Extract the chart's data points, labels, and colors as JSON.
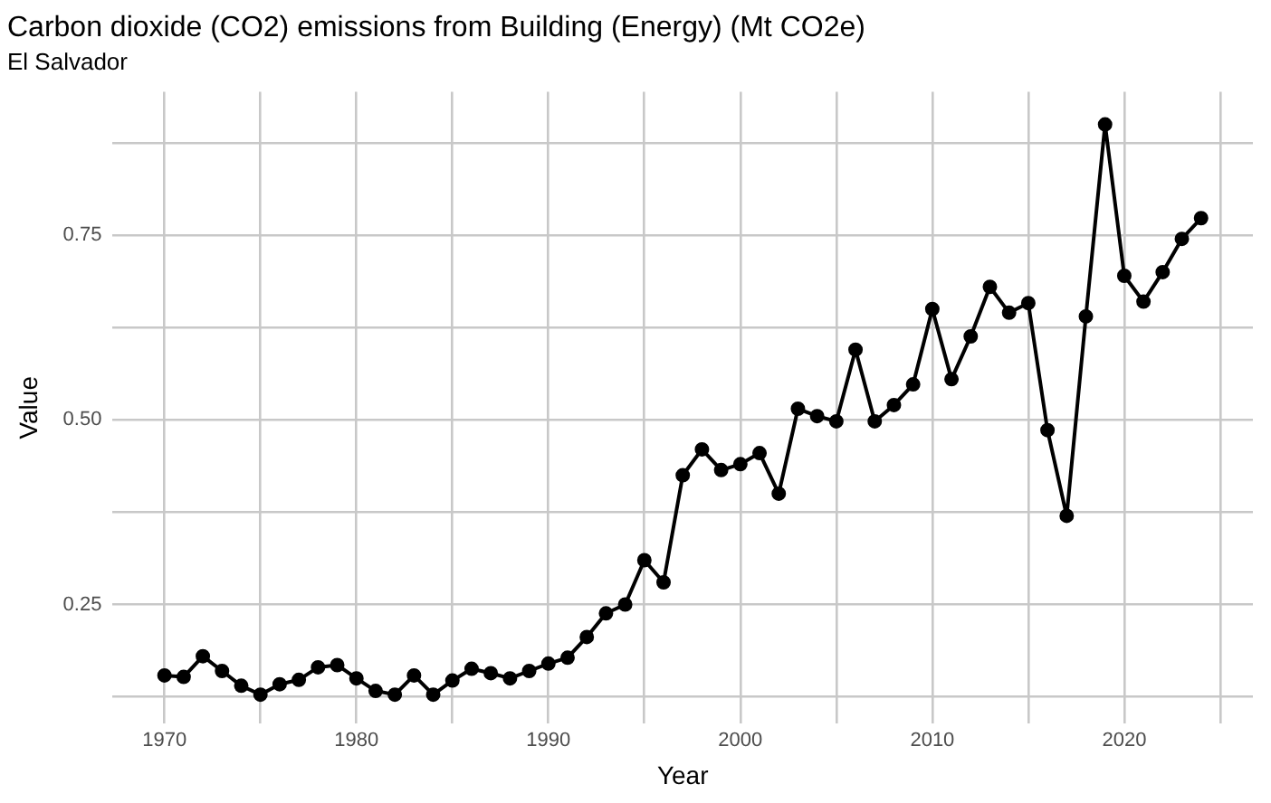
{
  "chart_data": {
    "type": "line",
    "title": "Carbon dioxide (CO2) emissions from Building (Energy) (Mt CO2e)",
    "subtitle": "El Salvador",
    "xlabel": "Year",
    "ylabel": "Value",
    "x": [
      1970,
      1971,
      1972,
      1973,
      1974,
      1975,
      1976,
      1977,
      1978,
      1979,
      1980,
      1981,
      1982,
      1983,
      1984,
      1985,
      1986,
      1987,
      1988,
      1989,
      1990,
      1991,
      1992,
      1993,
      1994,
      1995,
      1996,
      1997,
      1998,
      1999,
      2000,
      2001,
      2002,
      2003,
      2004,
      2005,
      2006,
      2007,
      2008,
      2009,
      2010,
      2011,
      2012,
      2013,
      2014,
      2015,
      2016,
      2017,
      2018,
      2019,
      2020,
      2021,
      2022,
      2023,
      2024
    ],
    "series": [
      {
        "color": "#000000",
        "values": [
          0.154,
          0.152,
          0.18,
          0.16,
          0.14,
          0.128,
          0.142,
          0.148,
          0.165,
          0.168,
          0.15,
          0.133,
          0.128,
          0.154,
          0.128,
          0.147,
          0.163,
          0.157,
          0.15,
          0.16,
          0.17,
          0.178,
          0.206,
          0.238,
          0.25,
          0.31,
          0.28,
          0.425,
          0.46,
          0.432,
          0.44,
          0.455,
          0.4,
          0.515,
          0.505,
          0.498,
          0.595,
          0.498,
          0.52,
          0.548,
          0.65,
          0.555,
          0.613,
          0.68,
          0.645,
          0.658,
          0.486,
          0.37,
          0.64,
          0.9,
          0.695,
          0.66,
          0.7,
          0.745,
          0.773
        ]
      }
    ],
    "xlim": [
      1967.3,
      2026.7
    ],
    "ylim": [
      0.089,
      0.944
    ],
    "xticks": [
      1970,
      {
        "value": 1975,
        "label": null
      },
      1980,
      {
        "value": 1985,
        "label": null
      },
      1990,
      {
        "value": 1995,
        "label": null
      },
      2000,
      {
        "value": 2005,
        "label": null
      },
      2010,
      {
        "value": 2015,
        "label": null
      },
      2020,
      {
        "value": 2025,
        "label": null
      }
    ],
    "yticks": [
      {
        "value": 0.125,
        "label": null
      },
      {
        "value": 0.25,
        "label": "0.25"
      },
      {
        "value": 0.375,
        "label": null
      },
      {
        "value": 0.5,
        "label": "0.50"
      },
      {
        "value": 0.625,
        "label": null
      },
      {
        "value": 0.75,
        "label": "0.75"
      },
      {
        "value": 0.875,
        "label": null
      }
    ],
    "grid": true,
    "marker": "circle",
    "line_style": "solid",
    "legend": false
  }
}
